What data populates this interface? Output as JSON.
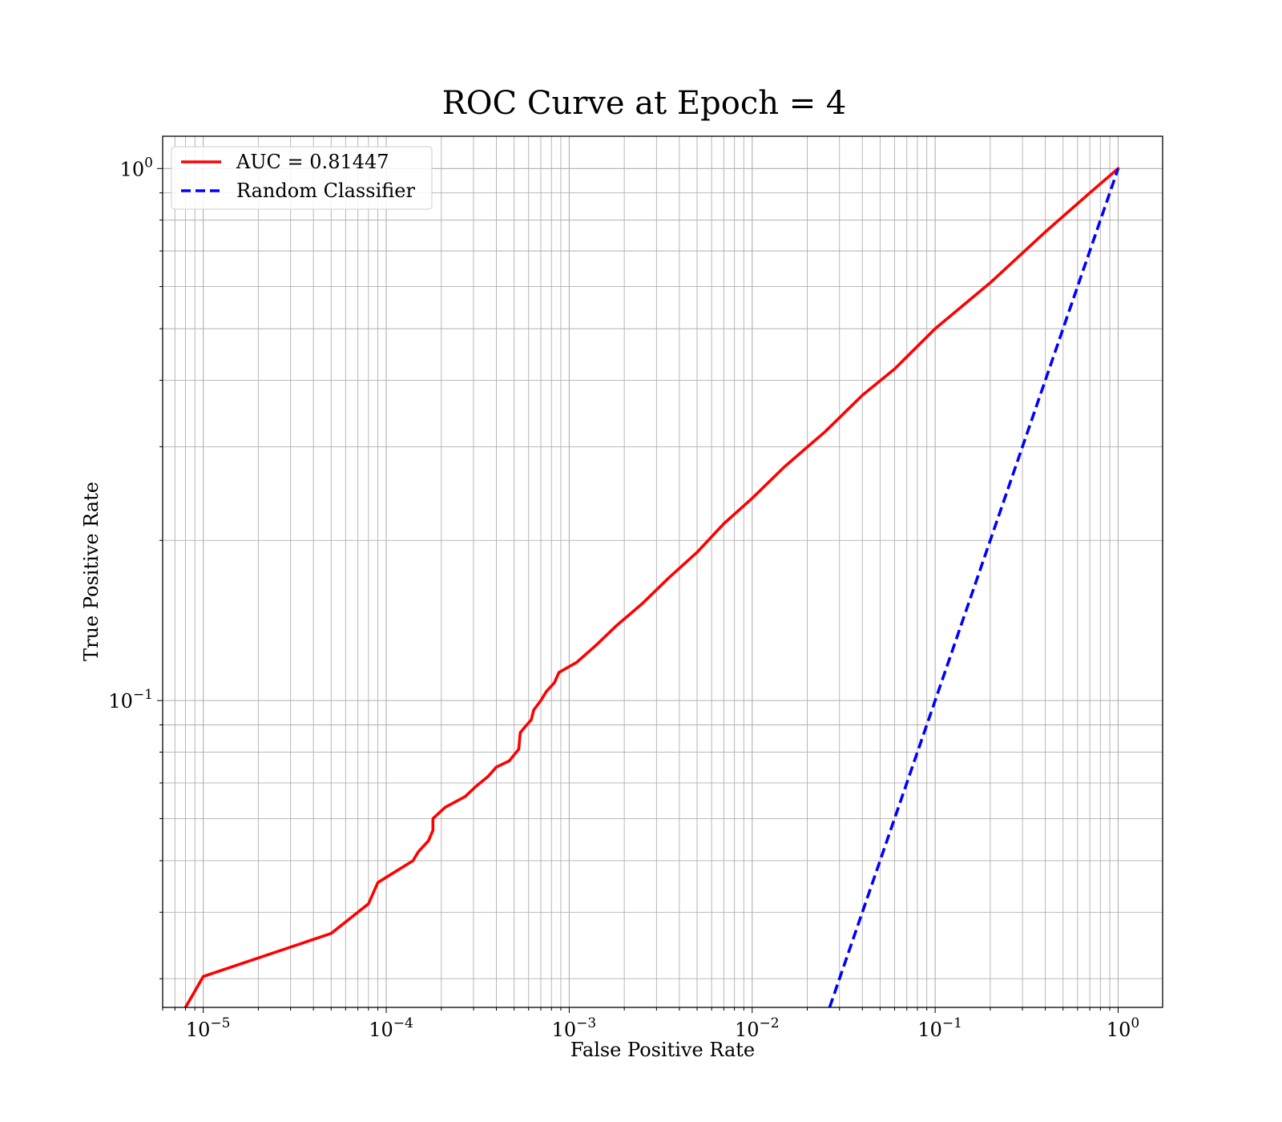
{
  "chart_data": {
    "type": "line",
    "title": "ROC Curve at Epoch = 4",
    "xlabel": "False Positive Rate",
    "ylabel": "True Positive Rate",
    "xscale": "log",
    "yscale": "log",
    "xlim": [
      6e-06,
      1.75
    ],
    "ylim": [
      0.0265,
      1.15
    ],
    "grid": "major and minor",
    "legend_position": "top-left",
    "x_ticks": [
      {
        "value": 1e-05,
        "base": "10",
        "exp": "−5"
      },
      {
        "value": 0.0001,
        "base": "10",
        "exp": "−4"
      },
      {
        "value": 0.001,
        "base": "10",
        "exp": "−3"
      },
      {
        "value": 0.01,
        "base": "10",
        "exp": "−2"
      },
      {
        "value": 0.1,
        "base": "10",
        "exp": "−1"
      },
      {
        "value": 1,
        "base": "10",
        "exp": "0"
      }
    ],
    "y_ticks": [
      {
        "value": 0.1,
        "base": "10",
        "exp": "−1"
      },
      {
        "value": 1,
        "base": "10",
        "exp": "0"
      }
    ],
    "series": [
      {
        "name": "AUC = 0.81447",
        "color": "#ff0000",
        "style": "solid",
        "x": [
          8e-06,
          1e-05,
          5e-05,
          8e-05,
          9e-05,
          0.00011,
          0.00014,
          0.00015,
          0.00017,
          0.00018,
          0.00018,
          0.00021,
          0.00027,
          0.00031,
          0.00036,
          0.0004,
          0.00047,
          0.00053,
          0.00054,
          0.00057,
          0.00062,
          0.00064,
          0.0007,
          0.00075,
          0.00083,
          0.00088,
          0.0011,
          0.0014,
          0.0018,
          0.0025,
          0.0035,
          0.005,
          0.007,
          0.01,
          0.015,
          0.025,
          0.04,
          0.06,
          0.1,
          0.2,
          0.4,
          0.7,
          1
        ],
        "y": [
          0.0265,
          0.0303,
          0.0365,
          0.0415,
          0.0455,
          0.0475,
          0.05,
          0.052,
          0.0545,
          0.057,
          0.06,
          0.063,
          0.066,
          0.069,
          0.072,
          0.075,
          0.077,
          0.081,
          0.087,
          0.089,
          0.092,
          0.096,
          0.1,
          0.104,
          0.108,
          0.113,
          0.118,
          0.127,
          0.138,
          0.152,
          0.17,
          0.19,
          0.215,
          0.24,
          0.275,
          0.32,
          0.375,
          0.42,
          0.5,
          0.61,
          0.76,
          0.9,
          1.0
        ]
      },
      {
        "name": "Random Classifier",
        "color": "#0000ff",
        "style": "dashed",
        "x": [
          0.0265,
          1
        ],
        "y": [
          0.0265,
          1
        ]
      }
    ]
  }
}
